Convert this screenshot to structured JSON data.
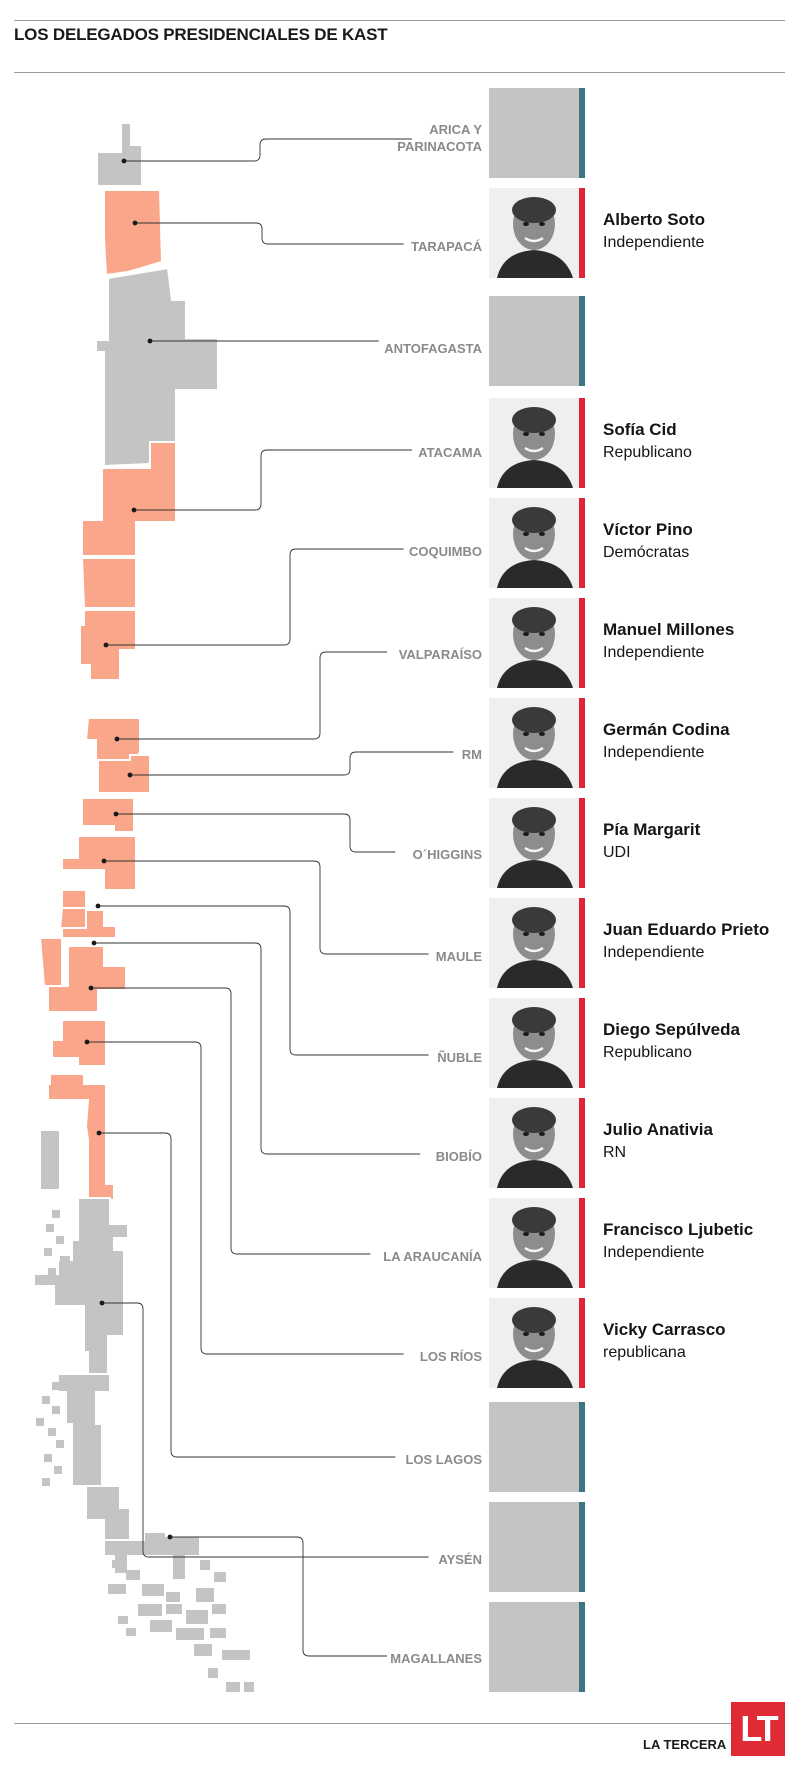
{
  "title": "LOS DELEGADOS PRESIDENCIALES DE KAST",
  "colors": {
    "filled_region": "#f9a68a",
    "empty_region": "#c4c4c4",
    "accent_red": "#e0223a",
    "accent_teal": "#3e7585",
    "label_gray": "#8a8a8a"
  },
  "regions": [
    {
      "name": "ARICA Y\nPARINACOTA",
      "delegate": null
    },
    {
      "name": "TARAPACÁ",
      "delegate": {
        "name": "Alberto Soto",
        "party": "Independiente"
      }
    },
    {
      "name": "ANTOFAGASTA",
      "delegate": null
    },
    {
      "name": "ATACAMA",
      "delegate": {
        "name": "Sofía Cid",
        "party": "Republicano"
      }
    },
    {
      "name": "COQUIMBO",
      "delegate": {
        "name": "Víctor Pino",
        "party": "Demócratas"
      }
    },
    {
      "name": "VALPARAÍSO",
      "delegate": {
        "name": "Manuel Millones",
        "party": "Independiente"
      }
    },
    {
      "name": "RM",
      "delegate": {
        "name": "Germán Codina",
        "party": "Independiente"
      }
    },
    {
      "name": "O´HIGGINS",
      "delegate": {
        "name": "Pía Margarit",
        "party": "UDI"
      }
    },
    {
      "name": "MAULE",
      "delegate": {
        "name": "Juan Eduardo Prieto",
        "party": "Independiente"
      }
    },
    {
      "name": "ÑUBLE",
      "delegate": {
        "name": "Diego Sepúlveda",
        "party": "Republicano"
      }
    },
    {
      "name": "BIOBÍO",
      "delegate": {
        "name": "Julio Anativia",
        "party": "RN"
      }
    },
    {
      "name": "LA ARAUCANÍA",
      "delegate": {
        "name": "Francisco Ljubetic",
        "party": "Independiente"
      }
    },
    {
      "name": "LOS RÍOS",
      "delegate": {
        "name": "Vicky Carrasco",
        "party": "republicana"
      }
    },
    {
      "name": "LOS LAGOS",
      "delegate": null
    },
    {
      "name": "AYSÉN",
      "delegate": null
    },
    {
      "name": "MAGALLANES",
      "delegate": null
    }
  ],
  "footer": {
    "brand": "LA TERCERA",
    "logo_text": "LT"
  }
}
